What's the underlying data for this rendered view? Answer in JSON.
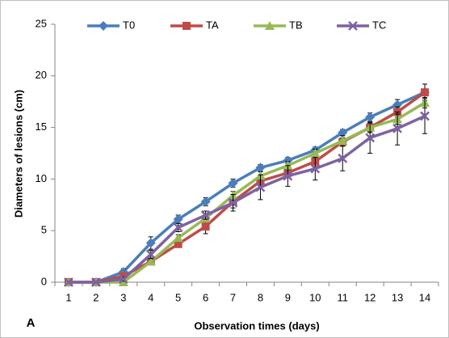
{
  "chart_data": {
    "type": "line",
    "panel_label": "A",
    "x_label": "Observation times (days)",
    "y_label": "Diameters of lesions (cm)",
    "categories": [
      "1",
      "2",
      "3",
      "4",
      "5",
      "6",
      "7",
      "8",
      "9",
      "10",
      "11",
      "12",
      "13",
      "14"
    ],
    "ylim": [
      0,
      25
    ],
    "yticks": [
      0,
      5,
      10,
      15,
      20,
      25
    ],
    "grid": false,
    "legend": "top",
    "series": [
      {
        "name": "T0",
        "color": "#4a7ebb",
        "marker": "diamond",
        "values": [
          0,
          0,
          1,
          3.8,
          6.1,
          7.8,
          9.6,
          11.1,
          11.8,
          12.8,
          14.5,
          16,
          17.2,
          18.4
        ],
        "errors": [
          0,
          0,
          0.3,
          0.6,
          0.4,
          0.4,
          0.4,
          0.3,
          0.3,
          0.3,
          0.3,
          0.4,
          0.5,
          0.3
        ]
      },
      {
        "name": "TA",
        "color": "#be4b48",
        "marker": "square",
        "values": [
          0,
          0,
          0.6,
          2,
          3.7,
          5.4,
          7.8,
          9.8,
          10.6,
          11.7,
          13.6,
          15,
          16.5,
          18.4
        ],
        "errors": [
          0,
          0,
          0.2,
          0.3,
          0.3,
          0.7,
          0.6,
          0.4,
          0.4,
          0.5,
          0.4,
          0.4,
          0.5,
          0.8
        ]
      },
      {
        "name": "TB",
        "color": "#98b954",
        "marker": "triangle",
        "values": [
          0,
          0,
          0,
          2,
          4.3,
          6.2,
          8.4,
          10.3,
          11.3,
          12.5,
          13.7,
          15,
          15.8,
          17.4
        ],
        "errors": [
          0,
          0,
          0,
          0.2,
          0.3,
          0.3,
          0.4,
          0.4,
          0.4,
          0.4,
          0.5,
          0.5,
          0.5,
          0.5
        ]
      },
      {
        "name": "TC",
        "color": "#7e62a1",
        "marker": "x",
        "values": [
          0,
          0,
          0.3,
          2.7,
          5.3,
          6.5,
          7.7,
          9.2,
          10.3,
          11,
          12,
          14,
          14.9,
          16.1
        ],
        "errors": [
          0,
          0,
          0.2,
          0.4,
          0.4,
          0.4,
          0.8,
          1.2,
          1,
          1.1,
          1.2,
          1.5,
          1.6,
          1.7
        ]
      }
    ]
  }
}
